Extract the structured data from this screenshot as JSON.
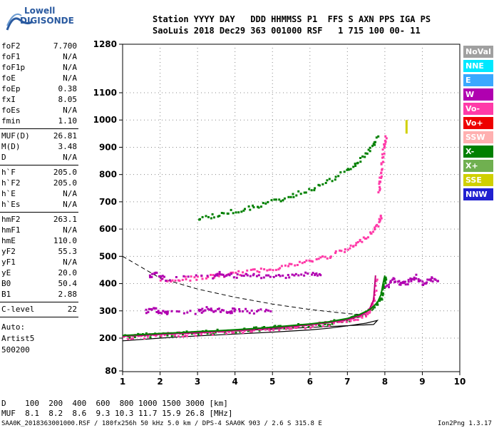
{
  "logo": {
    "top": "Lowell",
    "bottom": "DIGISONDE",
    "icon": "digisonde-wave-icon"
  },
  "header": {
    "line1": "Station YYYY DAY   DDD HHMMSS P1  FFS S AXN PPS IGA PS",
    "line2": "SaoLuis 2018 Dec29 363 001000 RSF   1 715 100 00- 11"
  },
  "params": [
    {
      "k": "foF2",
      "v": "7.700",
      "sep": false
    },
    {
      "k": "foF1",
      "v": "N/A",
      "sep": false
    },
    {
      "k": "foF1p",
      "v": "N/A",
      "sep": false
    },
    {
      "k": "foE",
      "v": "N/A",
      "sep": false
    },
    {
      "k": "foEp",
      "v": "0.38",
      "sep": false
    },
    {
      "k": "fxI",
      "v": "8.05",
      "sep": false
    },
    {
      "k": "foEs",
      "v": "N/A",
      "sep": false
    },
    {
      "k": "fmin",
      "v": "1.10",
      "sep": true
    },
    {
      "k": "MUF(D)",
      "v": "26.81",
      "sep": false
    },
    {
      "k": "M(D)",
      "v": "3.48",
      "sep": false
    },
    {
      "k": "D",
      "v": "N/A",
      "sep": true
    },
    {
      "k": "h`F",
      "v": "205.0",
      "sep": false
    },
    {
      "k": "h`F2",
      "v": "205.0",
      "sep": false
    },
    {
      "k": "h`E",
      "v": "N/A",
      "sep": false
    },
    {
      "k": "h`Es",
      "v": "N/A",
      "sep": true
    },
    {
      "k": "hmF2",
      "v": "263.1",
      "sep": false
    },
    {
      "k": "hmF1",
      "v": "N/A",
      "sep": false
    },
    {
      "k": "hmE",
      "v": "110.0",
      "sep": false
    },
    {
      "k": "yF2",
      "v": "55.3",
      "sep": false
    },
    {
      "k": "yF1",
      "v": "N/A",
      "sep": false
    },
    {
      "k": "yE",
      "v": "20.0",
      "sep": false
    },
    {
      "k": "B0",
      "v": "50.4",
      "sep": false
    },
    {
      "k": "B1",
      "v": "2.88",
      "sep": true
    },
    {
      "k": "C-level",
      "v": "22",
      "sep": true
    }
  ],
  "auto": {
    "l1": "Auto:",
    "l2": "Artist5",
    "l3": "500200"
  },
  "legend": [
    {
      "label": "NoVal",
      "color": "#a0a0a0"
    },
    {
      "label": "NNE",
      "color": "#00e8ff"
    },
    {
      "label": "E",
      "color": "#3aa8ff"
    },
    {
      "label": "W",
      "color": "#b000b0"
    },
    {
      "label": "Vo-",
      "color": "#ff3aa8"
    },
    {
      "label": "Vo+",
      "color": "#ee0000"
    },
    {
      "label": "SSW",
      "color": "#ffb0b0"
    },
    {
      "label": "X-",
      "color": "#008000"
    },
    {
      "label": "X+",
      "color": "#70b050"
    },
    {
      "label": "SSE",
      "color": "#d0d000"
    },
    {
      "label": "NNW",
      "color": "#2020d0"
    }
  ],
  "footer": {
    "d_row": "D    100  200  400  600  800 1000 1500 3000 [km]",
    "muf_row": "MUF  8.1  8.2  8.6  9.3 10.3 11.7 15.9 26.8 [MHz]",
    "info": "SAA0K_2018363001000.RSF / 180fx256h 50 kHz 5.0 km / DPS-4 SAA0K 903 / 2.6 S 315.8 E",
    "version": "Ion2Png 1.3.17"
  },
  "chart_data": {
    "type": "scatter",
    "xlim": [
      1,
      10
    ],
    "ylim_label_ticks": [
      80,
      200,
      300,
      400,
      500,
      600,
      700,
      800,
      900,
      1000,
      1100,
      1280
    ],
    "x_ticks": [
      "1",
      "2",
      "3",
      "4",
      "5",
      "6",
      "7",
      "8",
      "9",
      "10"
    ],
    "traces": [
      {
        "name": "X-",
        "color": "#008000",
        "x": [
          1.0,
          1.5,
          2.0,
          2.5,
          3.0,
          3.5,
          4.0,
          4.5,
          5.0,
          5.5,
          6.0,
          6.5,
          7.0,
          7.3,
          7.6,
          7.8,
          7.9,
          7.95,
          8.0
        ],
        "y": [
          210,
          213,
          217,
          220,
          224,
          227,
          231,
          235,
          240,
          246,
          252,
          260,
          272,
          285,
          305,
          330,
          360,
          400,
          430
        ]
      },
      {
        "name": "Vo-",
        "color": "#ff3aa8",
        "x": [
          1.0,
          1.5,
          2.0,
          2.5,
          3.0,
          3.5,
          4.0,
          4.5,
          5.0,
          5.5,
          6.0,
          6.5,
          7.0,
          7.3,
          7.5,
          7.6,
          7.7,
          7.75
        ],
        "y": [
          207,
          210,
          214,
          217,
          220,
          224,
          228,
          232,
          237,
          243,
          249,
          257,
          268,
          280,
          295,
          310,
          340,
          430
        ]
      },
      {
        "name": "Vo-",
        "color": "#ff3aa8",
        "x": [
          2.0,
          2.5,
          3.0,
          3.5,
          4.0,
          4.5,
          5.0,
          5.5,
          6.0,
          6.5,
          7.0,
          7.3,
          7.6,
          7.8,
          7.9
        ],
        "y": [
          415,
          420,
          425,
          432,
          440,
          450,
          460,
          472,
          487,
          505,
          530,
          555,
          590,
          620,
          660
        ]
      },
      {
        "name": "X-",
        "color": "#008000",
        "x": [
          3.0,
          3.5,
          4.0,
          4.5,
          5.0,
          5.5,
          6.0,
          6.5,
          7.0,
          7.3,
          7.6,
          7.8
        ],
        "y": [
          640,
          655,
          670,
          685,
          705,
          725,
          750,
          780,
          820,
          855,
          900,
          945
        ]
      },
      {
        "name": "W",
        "color": "#b000b0",
        "x": [
          1.6,
          1.8,
          2.0,
          2.2,
          3.0,
          3.2,
          3.5,
          3.8,
          4.0,
          4.5,
          5.0
        ],
        "y": [
          300,
          310,
          300,
          295,
          300,
          310,
          305,
          300,
          310,
          300,
          305
        ]
      },
      {
        "name": "W",
        "color": "#b000b0",
        "x": [
          1.7,
          1.9,
          2.1,
          3.4,
          3.6,
          4.0,
          4.5,
          5.0,
          5.5,
          6.0,
          6.3
        ],
        "y": [
          430,
          440,
          420,
          430,
          440,
          430,
          432,
          428,
          435,
          440,
          430
        ]
      },
      {
        "name": "W",
        "color": "#b000b0",
        "x": [
          8.0,
          8.2,
          8.4,
          8.6,
          8.8,
          9.0,
          9.2,
          9.4
        ],
        "y": [
          390,
          420,
          400,
          410,
          430,
          395,
          420,
          410
        ]
      },
      {
        "name": "Vo-",
        "color": "#ff3aa8",
        "x": [
          7.8,
          7.85,
          7.9,
          7.95,
          8.0
        ],
        "y": [
          740,
          790,
          840,
          900,
          950
        ]
      }
    ],
    "profile_curve": {
      "x": [
        1.0,
        2.0,
        3.0,
        4.0,
        5.0,
        6.0,
        6.5,
        7.0,
        7.5,
        7.8
      ],
      "y": [
        190,
        200,
        208,
        215,
        222,
        230,
        236,
        245,
        255,
        265
      ]
    },
    "dashed_curve": {
      "x": [
        1.0,
        1.5,
        2.0,
        3.0,
        4.0,
        5.0,
        6.0,
        7.0,
        7.5
      ],
      "y": [
        500,
        460,
        420,
        380,
        350,
        325,
        305,
        290,
        285
      ]
    }
  }
}
